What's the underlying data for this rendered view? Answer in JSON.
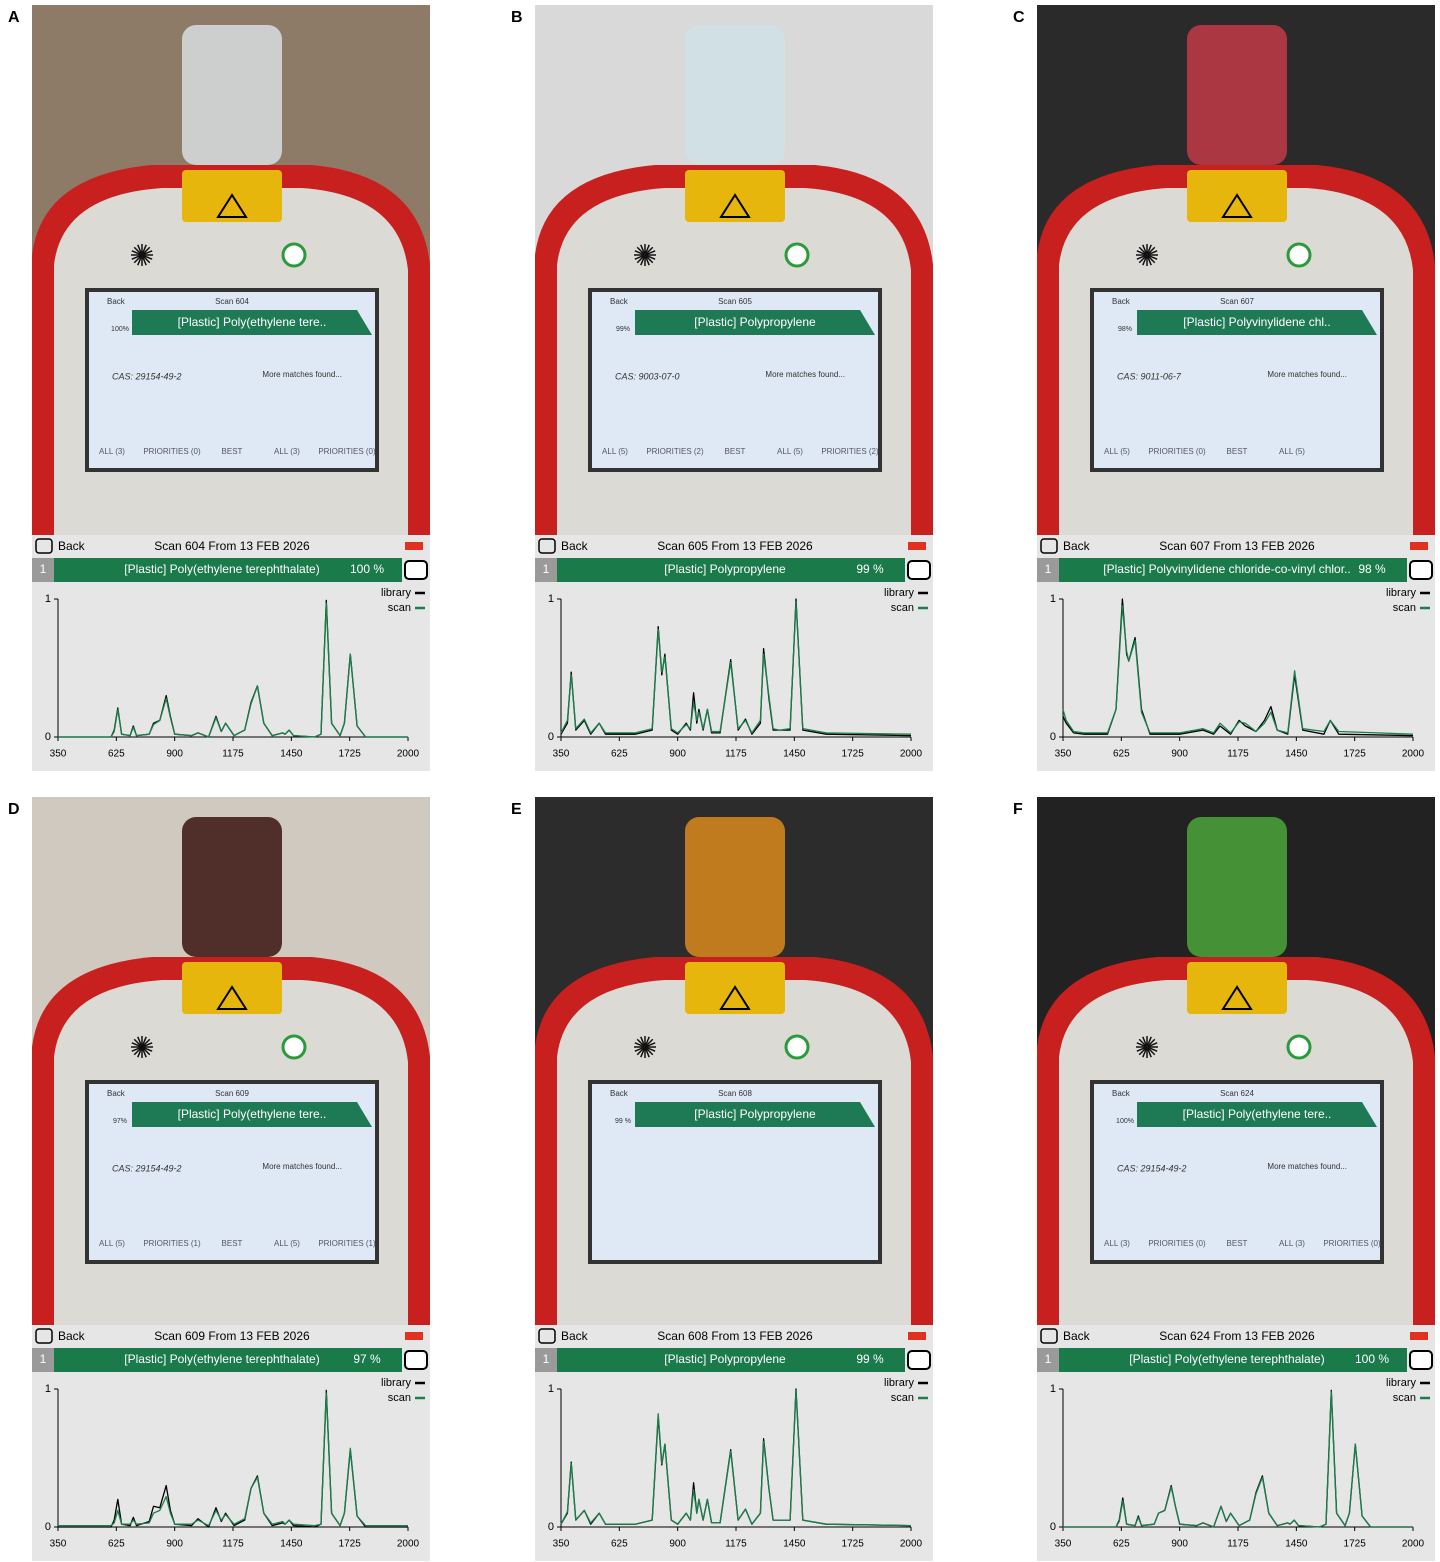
{
  "panels": [
    {
      "label": "A",
      "photo": {
        "back": "Back",
        "scan": "Scan 604",
        "percent": "100%",
        "name": "[Plastic] Poly(ethylene tere..",
        "cas": "CAS: 29154-49-2",
        "more": "More matches found...",
        "footer": [
          "ALL (3)",
          "PRIORITIES (0)",
          "BEST",
          "ALL (3)",
          "PRIORITIES (0)"
        ]
      },
      "screen": {
        "back": "Back",
        "scan": "Scan 604 From 13 FEB 2026",
        "rank": "1",
        "name": "[Plastic] Poly(ethylene terephthalate)",
        "percent": "100 %"
      }
    },
    {
      "label": "B",
      "photo": {
        "back": "Back",
        "scan": "Scan 605",
        "percent": "99%",
        "name": "[Plastic] Polypropylene",
        "cas": "CAS: 9003-07-0",
        "more": "More matches found...",
        "footer": [
          "ALL (5)",
          "PRIORITIES (2)",
          "BEST",
          "ALL (5)",
          "PRIORITIES (2)"
        ]
      },
      "screen": {
        "back": "Back",
        "scan": "Scan 605 From 13 FEB 2026",
        "rank": "1",
        "name": "[Plastic] Polypropylene",
        "percent": "99 %"
      }
    },
    {
      "label": "C",
      "photo": {
        "back": "Back",
        "scan": "Scan 607",
        "percent": "98%",
        "name": "[Plastic] Polyvinylidene chl..",
        "cas": "CAS: 9011-06-7",
        "more": "More matches found...",
        "footer": [
          "ALL (5)",
          "PRIORITIES (0)",
          "BEST",
          "ALL (5)"
        ]
      },
      "screen": {
        "back": "Back",
        "scan": "Scan 607 From 13 FEB 2026",
        "rank": "1",
        "name": "[Plastic] Polyvinylidene chloride-co-vinyl chlor..",
        "percent": "98 %"
      }
    },
    {
      "label": "D",
      "photo": {
        "back": "Back",
        "scan": "Scan 609",
        "percent": "97%",
        "name": "[Plastic] Poly(ethylene tere..",
        "cas": "CAS: 29154-49-2",
        "more": "More matches found...",
        "footer": [
          "ALL (5)",
          "PRIORITIES (1)",
          "BEST",
          "ALL (5)",
          "PRIORITIES (1)"
        ]
      },
      "screen": {
        "back": "Back",
        "scan": "Scan 609 From 13 FEB 2026",
        "rank": "1",
        "name": "[Plastic] Poly(ethylene terephthalate)",
        "percent": "97 %"
      }
    },
    {
      "label": "E",
      "photo": {
        "back": "Back",
        "scan": "Scan 608",
        "percent": "99 %",
        "name": "[Plastic] Polypropylene"
      },
      "screen": {
        "back": "Back",
        "scan": "Scan 608 From 13 FEB 2026",
        "rank": "1",
        "name": "[Plastic] Polypropylene",
        "percent": "99 %"
      }
    },
    {
      "label": "F",
      "photo": {
        "back": "Back",
        "scan": "Scan 624",
        "percent": "100%",
        "name": "[Plastic] Poly(ethylene tere..",
        "cas": "CAS: 29154-49-2",
        "more": "More matches found...",
        "footer": [
          "ALL (3)",
          "PRIORITIES (0)",
          "BEST",
          "ALL (3)",
          "PRIORITIES (0)"
        ]
      },
      "screen": {
        "back": "Back",
        "scan": "Scan 624 From 13 FEB 2026",
        "rank": "1",
        "name": "[Plastic] Poly(ethylene terephthalate)",
        "percent": "100 %"
      }
    }
  ],
  "chart_data": [
    {
      "type": "line",
      "x": [
        350,
        600,
        615,
        632,
        650,
        690,
        705,
        720,
        780,
        800,
        830,
        860,
        880,
        900,
        980,
        1010,
        1060,
        1095,
        1120,
        1140,
        1180,
        1230,
        1260,
        1290,
        1320,
        1360,
        1410,
        1420,
        1440,
        1460,
        1560,
        1590,
        1615,
        1640,
        1680,
        1700,
        1728,
        1760,
        1800,
        2000
      ],
      "series": [
        {
          "name": "library",
          "color": "#000000",
          "values": [
            0,
            0,
            0.05,
            0.21,
            0.02,
            0.01,
            0.08,
            0.01,
            0.02,
            0.1,
            0.12,
            0.3,
            0.15,
            0.02,
            0.01,
            0.03,
            0,
            0.15,
            0.04,
            0.1,
            0.01,
            0.05,
            0.25,
            0.37,
            0.1,
            0.01,
            0.03,
            0.02,
            0.05,
            0.01,
            0,
            0.02,
            0.99,
            0.1,
            0.01,
            0.1,
            0.6,
            0.08,
            0,
            0
          ]
        },
        {
          "name": "scan",
          "color": "#1a7f4b",
          "values": [
            0,
            0,
            0.04,
            0.2,
            0.02,
            0.01,
            0.07,
            0.01,
            0.02,
            0.09,
            0.12,
            0.28,
            0.14,
            0.02,
            0.01,
            0.03,
            0,
            0.14,
            0.04,
            0.1,
            0.01,
            0.05,
            0.24,
            0.37,
            0.1,
            0.01,
            0.03,
            0.02,
            0.05,
            0.01,
            0,
            0.02,
            0.97,
            0.1,
            0.01,
            0.1,
            0.6,
            0.08,
            0,
            0
          ]
        }
      ],
      "xlim": [
        350,
        2000
      ],
      "ylim": [
        0,
        1
      ],
      "xticks": [
        350,
        625,
        900,
        1175,
        1450,
        1725,
        2000
      ],
      "yticks": [
        0,
        1
      ]
    },
    {
      "type": "line",
      "x": [
        350,
        380,
        398,
        420,
        460,
        490,
        530,
        560,
        700,
        780,
        808,
        825,
        840,
        870,
        900,
        940,
        960,
        975,
        990,
        1000,
        1020,
        1040,
        1060,
        1100,
        1150,
        1185,
        1220,
        1250,
        1290,
        1305,
        1330,
        1350,
        1380,
        1430,
        1458,
        1490,
        1600,
        2000
      ],
      "series": [
        {
          "name": "library",
          "color": "#000000",
          "values": [
            0.02,
            0.1,
            0.47,
            0.05,
            0.12,
            0.02,
            0.1,
            0.02,
            0.02,
            0.05,
            0.8,
            0.45,
            0.6,
            0.05,
            0.02,
            0.1,
            0.05,
            0.32,
            0.1,
            0.2,
            0.05,
            0.2,
            0.03,
            0.03,
            0.56,
            0.05,
            0.13,
            0.02,
            0.1,
            0.64,
            0.28,
            0.05,
            0.05,
            0.05,
            1,
            0.05,
            0.02,
            0.01
          ]
        },
        {
          "name": "scan",
          "color": "#1a7f4b",
          "values": [
            0.03,
            0.12,
            0.45,
            0.06,
            0.13,
            0.03,
            0.1,
            0.03,
            0.03,
            0.06,
            0.78,
            0.47,
            0.58,
            0.06,
            0.03,
            0.09,
            0.06,
            0.25,
            0.12,
            0.18,
            0.06,
            0.2,
            0.04,
            0.04,
            0.54,
            0.06,
            0.12,
            0.03,
            0.12,
            0.6,
            0.3,
            0.06,
            0.05,
            0.06,
            0.98,
            0.06,
            0.03,
            0.02
          ]
        }
      ],
      "xlim": [
        350,
        2000
      ],
      "ylim": [
        0,
        1
      ],
      "xticks": [
        350,
        625,
        900,
        1175,
        1450,
        1725,
        2000
      ],
      "yticks": [
        0,
        1
      ]
    },
    {
      "type": "line",
      "x": [
        350,
        365,
        400,
        450,
        560,
        600,
        630,
        650,
        660,
        690,
        720,
        760,
        900,
        1010,
        1060,
        1090,
        1140,
        1180,
        1210,
        1260,
        1300,
        1330,
        1360,
        1410,
        1442,
        1480,
        1580,
        1610,
        1650,
        2000
      ],
      "series": [
        {
          "name": "library",
          "color": "#000000",
          "values": [
            0.15,
            0.1,
            0.03,
            0.02,
            0.02,
            0.2,
            1,
            0.6,
            0.55,
            0.72,
            0.2,
            0.02,
            0.02,
            0.05,
            0.02,
            0.08,
            0.02,
            0.12,
            0.08,
            0.04,
            0.12,
            0.22,
            0.05,
            0.02,
            0.45,
            0.05,
            0.02,
            0.12,
            0.02,
            0.01
          ]
        },
        {
          "name": "scan",
          "color": "#1a7f4b",
          "values": [
            0.2,
            0.12,
            0.04,
            0.03,
            0.03,
            0.2,
            0.95,
            0.62,
            0.55,
            0.7,
            0.18,
            0.03,
            0.03,
            0.06,
            0.03,
            0.1,
            0.03,
            0.11,
            0.1,
            0.04,
            0.1,
            0.18,
            0.05,
            0.03,
            0.48,
            0.06,
            0.04,
            0.12,
            0.04,
            0.02
          ]
        }
      ],
      "xlim": [
        350,
        2000
      ],
      "ylim": [
        0,
        1
      ],
      "xticks": [
        350,
        625,
        900,
        1175,
        1450,
        1725,
        2000
      ],
      "yticks": [
        0,
        1
      ]
    },
    {
      "type": "line",
      "x": [
        350,
        600,
        615,
        632,
        650,
        690,
        705,
        720,
        780,
        800,
        830,
        860,
        880,
        900,
        980,
        1010,
        1060,
        1095,
        1120,
        1140,
        1180,
        1230,
        1260,
        1290,
        1320,
        1360,
        1410,
        1420,
        1440,
        1460,
        1560,
        1590,
        1615,
        1640,
        1680,
        1700,
        1728,
        1760,
        1800,
        2000
      ],
      "series": [
        {
          "name": "library",
          "color": "#000000",
          "values": [
            0,
            0,
            0.05,
            0.2,
            0.02,
            0.01,
            0.07,
            0.01,
            0.04,
            0.15,
            0.14,
            0.3,
            0.12,
            0.02,
            0.01,
            0.06,
            0,
            0.14,
            0.04,
            0.1,
            0.01,
            0.05,
            0.28,
            0.37,
            0.1,
            0.01,
            0.03,
            0.02,
            0.05,
            0.01,
            0,
            0.02,
            0.99,
            0.1,
            0.01,
            0.1,
            0.56,
            0.08,
            0,
            0
          ]
        },
        {
          "name": "scan",
          "color": "#1a7f4b",
          "values": [
            0.01,
            0.01,
            0.03,
            0.12,
            0.02,
            0.02,
            0.05,
            0.02,
            0.03,
            0.1,
            0.12,
            0.22,
            0.1,
            0.02,
            0.02,
            0.05,
            0.01,
            0.12,
            0.05,
            0.09,
            0.02,
            0.06,
            0.28,
            0.36,
            0.1,
            0.02,
            0.04,
            0.02,
            0.05,
            0.02,
            0.01,
            0.02,
            0.97,
            0.1,
            0.01,
            0.1,
            0.57,
            0.08,
            0.01,
            0.01
          ]
        }
      ],
      "xlim": [
        350,
        2000
      ],
      "ylim": [
        0,
        1
      ],
      "xticks": [
        350,
        625,
        900,
        1175,
        1450,
        1725,
        2000
      ],
      "yticks": [
        0,
        1
      ]
    },
    {
      "type": "line",
      "x": [
        350,
        380,
        398,
        420,
        460,
        490,
        530,
        560,
        700,
        780,
        808,
        825,
        840,
        870,
        900,
        940,
        960,
        975,
        990,
        1000,
        1020,
        1040,
        1060,
        1100,
        1150,
        1185,
        1220,
        1250,
        1290,
        1305,
        1330,
        1350,
        1380,
        1430,
        1458,
        1490,
        1600,
        2000
      ],
      "series": [
        {
          "name": "library",
          "color": "#000000",
          "values": [
            0.02,
            0.1,
            0.47,
            0.05,
            0.12,
            0.02,
            0.1,
            0.02,
            0.02,
            0.05,
            0.8,
            0.45,
            0.6,
            0.05,
            0.02,
            0.1,
            0.05,
            0.32,
            0.1,
            0.2,
            0.05,
            0.2,
            0.03,
            0.03,
            0.56,
            0.05,
            0.13,
            0.02,
            0.1,
            0.64,
            0.28,
            0.05,
            0.05,
            0.05,
            1,
            0.05,
            0.02,
            0.01
          ]
        },
        {
          "name": "scan",
          "color": "#1a7f4b",
          "values": [
            0.02,
            0.11,
            0.46,
            0.05,
            0.12,
            0.03,
            0.1,
            0.02,
            0.02,
            0.05,
            0.82,
            0.46,
            0.6,
            0.05,
            0.02,
            0.1,
            0.05,
            0.27,
            0.1,
            0.2,
            0.05,
            0.2,
            0.03,
            0.03,
            0.55,
            0.05,
            0.13,
            0.02,
            0.1,
            0.62,
            0.28,
            0.05,
            0.05,
            0.05,
            0.99,
            0.05,
            0.02,
            0.01
          ]
        }
      ],
      "xlim": [
        350,
        2000
      ],
      "ylim": [
        0,
        1
      ],
      "xticks": [
        350,
        625,
        900,
        1175,
        1450,
        1725,
        2000
      ],
      "yticks": [
        0,
        1
      ]
    },
    {
      "type": "line",
      "x": [
        350,
        600,
        615,
        632,
        650,
        690,
        705,
        720,
        780,
        800,
        830,
        860,
        880,
        900,
        980,
        1010,
        1060,
        1095,
        1120,
        1140,
        1180,
        1230,
        1260,
        1290,
        1320,
        1360,
        1410,
        1420,
        1440,
        1460,
        1560,
        1590,
        1615,
        1640,
        1680,
        1700,
        1728,
        1760,
        1800,
        2000
      ],
      "series": [
        {
          "name": "library",
          "color": "#000000",
          "values": [
            0,
            0,
            0.05,
            0.21,
            0.02,
            0.01,
            0.08,
            0.01,
            0.02,
            0.1,
            0.12,
            0.3,
            0.15,
            0.02,
            0.01,
            0.03,
            0,
            0.15,
            0.04,
            0.1,
            0.01,
            0.05,
            0.25,
            0.37,
            0.1,
            0.01,
            0.03,
            0.02,
            0.05,
            0.01,
            0,
            0.02,
            0.99,
            0.1,
            0.01,
            0.1,
            0.6,
            0.08,
            0,
            0
          ]
        },
        {
          "name": "scan",
          "color": "#1a7f4b",
          "values": [
            0,
            0,
            0.04,
            0.19,
            0.02,
            0.01,
            0.07,
            0.01,
            0.02,
            0.1,
            0.12,
            0.29,
            0.15,
            0.02,
            0.01,
            0.03,
            0,
            0.15,
            0.04,
            0.1,
            0.01,
            0.05,
            0.24,
            0.36,
            0.1,
            0.01,
            0.03,
            0.02,
            0.05,
            0.01,
            0,
            0.02,
            0.98,
            0.1,
            0.01,
            0.1,
            0.6,
            0.08,
            0,
            0
          ]
        }
      ],
      "xlim": [
        350,
        2000
      ],
      "ylim": [
        0,
        1
      ],
      "xticks": [
        350,
        625,
        900,
        1175,
        1450,
        1725,
        2000
      ],
      "yticks": [
        0,
        1
      ]
    }
  ]
}
